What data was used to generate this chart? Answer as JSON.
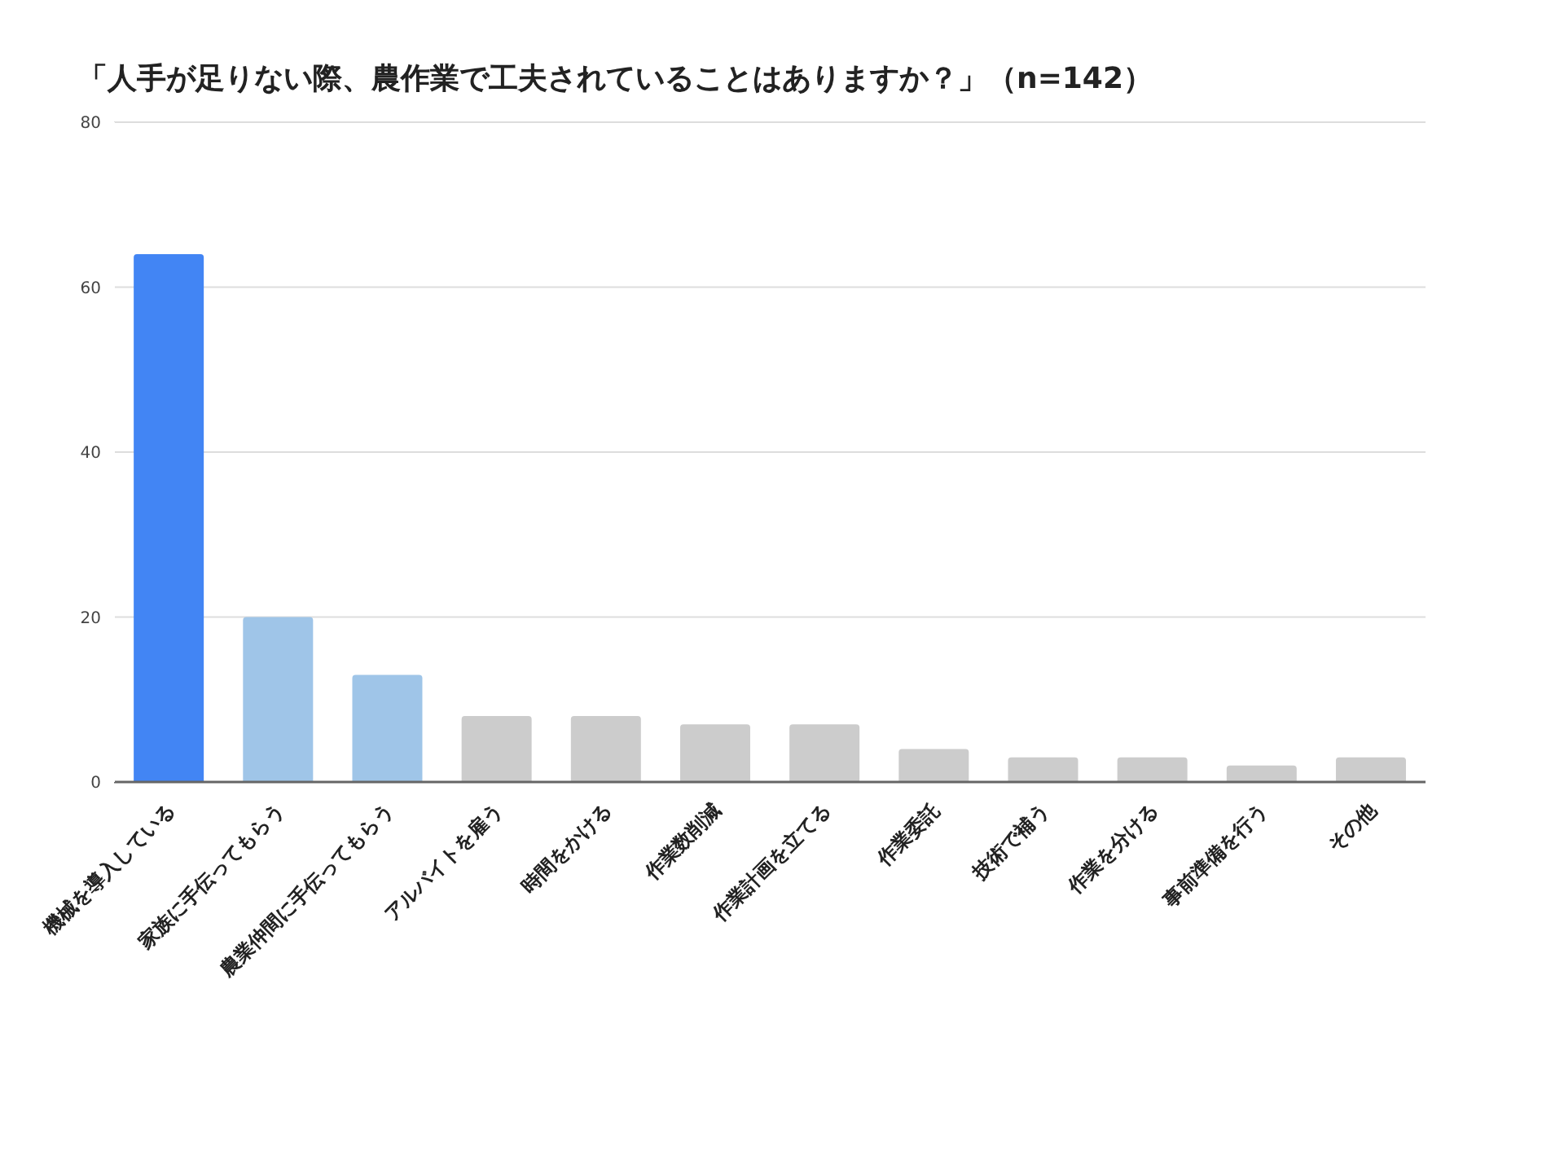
{
  "chart_data": {
    "type": "bar",
    "title": "「人手が足りない際、農作業で工夫されていることはありますか？」（n=142）",
    "categories": [
      "機械を導入している",
      "家族に手伝ってもらう",
      "農業仲間に手伝ってもらう",
      "アルバイトを雇う",
      "時間をかける",
      "作業数削減",
      "作業計画を立てる",
      "作業委託",
      "技術で補う",
      "作業を分ける",
      "事前準備を行う",
      "その他"
    ],
    "values": [
      64,
      20,
      13,
      8,
      8,
      7,
      7,
      4,
      3,
      3,
      2,
      3
    ],
    "colors": [
      "#4285f4",
      "#9fc5e8",
      "#9fc5e8",
      "#cccccc",
      "#cccccc",
      "#cccccc",
      "#cccccc",
      "#cccccc",
      "#cccccc",
      "#cccccc",
      "#cccccc",
      "#cccccc"
    ],
    "ylim": [
      0,
      80
    ],
    "yticks": [
      0,
      20,
      40,
      60,
      80
    ],
    "grid": "y"
  }
}
